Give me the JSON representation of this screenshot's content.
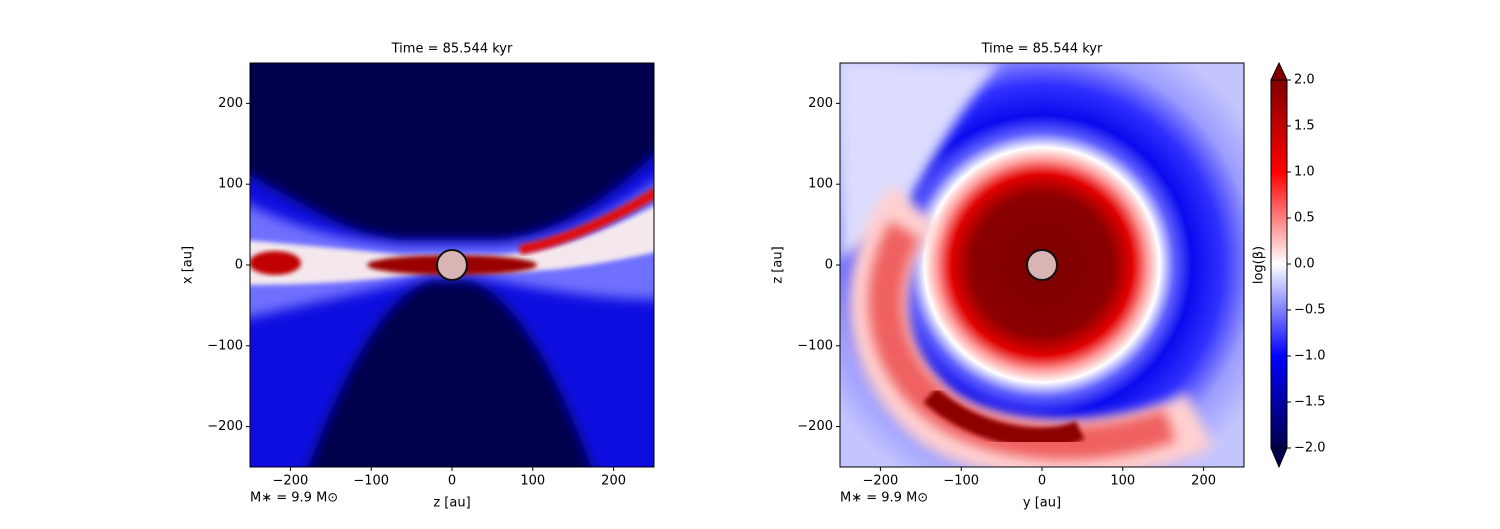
{
  "chart_data": [
    {
      "type": "contour",
      "title": "Time = 85.544 kyr",
      "xlabel": "z [au]",
      "ylabel": "x [au]",
      "annotation": "M∗ = 9.9 M⊙",
      "xlim": [
        -250,
        250
      ],
      "ylim": [
        -250,
        250
      ],
      "xticks": [
        {
          "value": -200,
          "label": "−200"
        },
        {
          "value": -100,
          "label": "−100"
        },
        0,
        100,
        200
      ],
      "yticks": [
        {
          "value": -200,
          "label": "−200"
        },
        {
          "value": -100,
          "label": "−100"
        },
        0,
        100,
        200
      ]
    },
    {
      "type": "contour",
      "title": "Time = 85.544 kyr",
      "xlabel": "y [au]",
      "ylabel": "z [au]",
      "annotation": "M∗ = 9.9 M⊙",
      "xlim": [
        -250,
        250
      ],
      "ylim": [
        -250,
        250
      ],
      "xticks": [
        {
          "value": -200,
          "label": "−200"
        },
        {
          "value": -100,
          "label": "−100"
        },
        0,
        100,
        200
      ],
      "yticks": [
        {
          "value": -200,
          "label": "−200"
        },
        {
          "value": -100,
          "label": "−100"
        },
        0,
        100,
        200
      ],
      "colorbar": {
        "label": "log(β)",
        "lim": [
          -2,
          2
        ],
        "ticks": [
          {
            "value": -2,
            "label": "−2.0"
          },
          {
            "value": -1.5,
            "label": "−1.5"
          },
          {
            "value": -1,
            "label": "−1.0"
          },
          {
            "value": -0.5,
            "label": "−0.5"
          },
          {
            "value": 0,
            "label": "0.0"
          },
          0.5,
          {
            "value": 1,
            "label": "1.0"
          },
          1.5,
          {
            "value": 2,
            "label": "2.0"
          }
        ]
      }
    }
  ]
}
